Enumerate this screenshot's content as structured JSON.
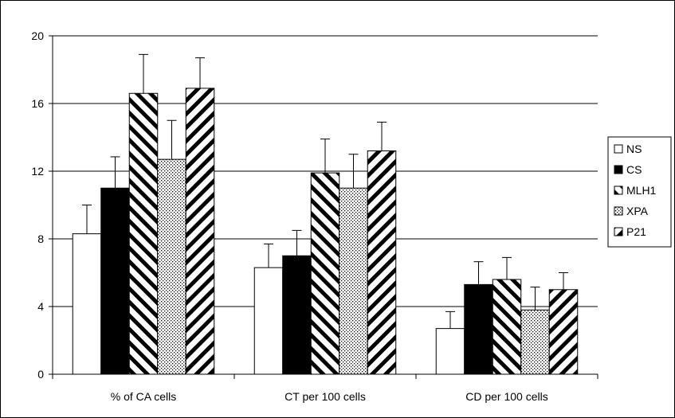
{
  "chart_data": {
    "type": "bar",
    "categories": [
      "% of CA cells",
      "CT per 100 cells",
      "CD per 100 cells"
    ],
    "series": [
      {
        "name": "NS",
        "values": [
          8.3,
          6.3,
          2.7
        ],
        "errors": [
          1.7,
          1.4,
          1.0
        ],
        "pattern": "white"
      },
      {
        "name": "CS",
        "values": [
          11.0,
          7.0,
          5.3
        ],
        "errors": [
          1.85,
          1.5,
          1.35
        ],
        "pattern": "black"
      },
      {
        "name": "MLH1",
        "values": [
          16.6,
          11.9,
          5.6
        ],
        "errors": [
          2.3,
          2.0,
          1.3
        ],
        "pattern": "back-diagonal"
      },
      {
        "name": "XPA",
        "values": [
          12.7,
          11.0,
          3.8
        ],
        "errors": [
          2.3,
          2.0,
          1.35
        ],
        "pattern": "dots"
      },
      {
        "name": "P21",
        "values": [
          16.9,
          13.2,
          5.0
        ],
        "errors": [
          1.8,
          1.7,
          1.0
        ],
        "pattern": "forward-diagonal"
      }
    ],
    "ylim": [
      0,
      20
    ],
    "yticks": [
      "0",
      "4",
      "8",
      "12",
      "16",
      "20"
    ],
    "grid": true,
    "legend_position": "right",
    "colors": {
      "fill_dark": "#000000",
      "fill_light": "#ffffff",
      "grid": "#000000"
    }
  }
}
